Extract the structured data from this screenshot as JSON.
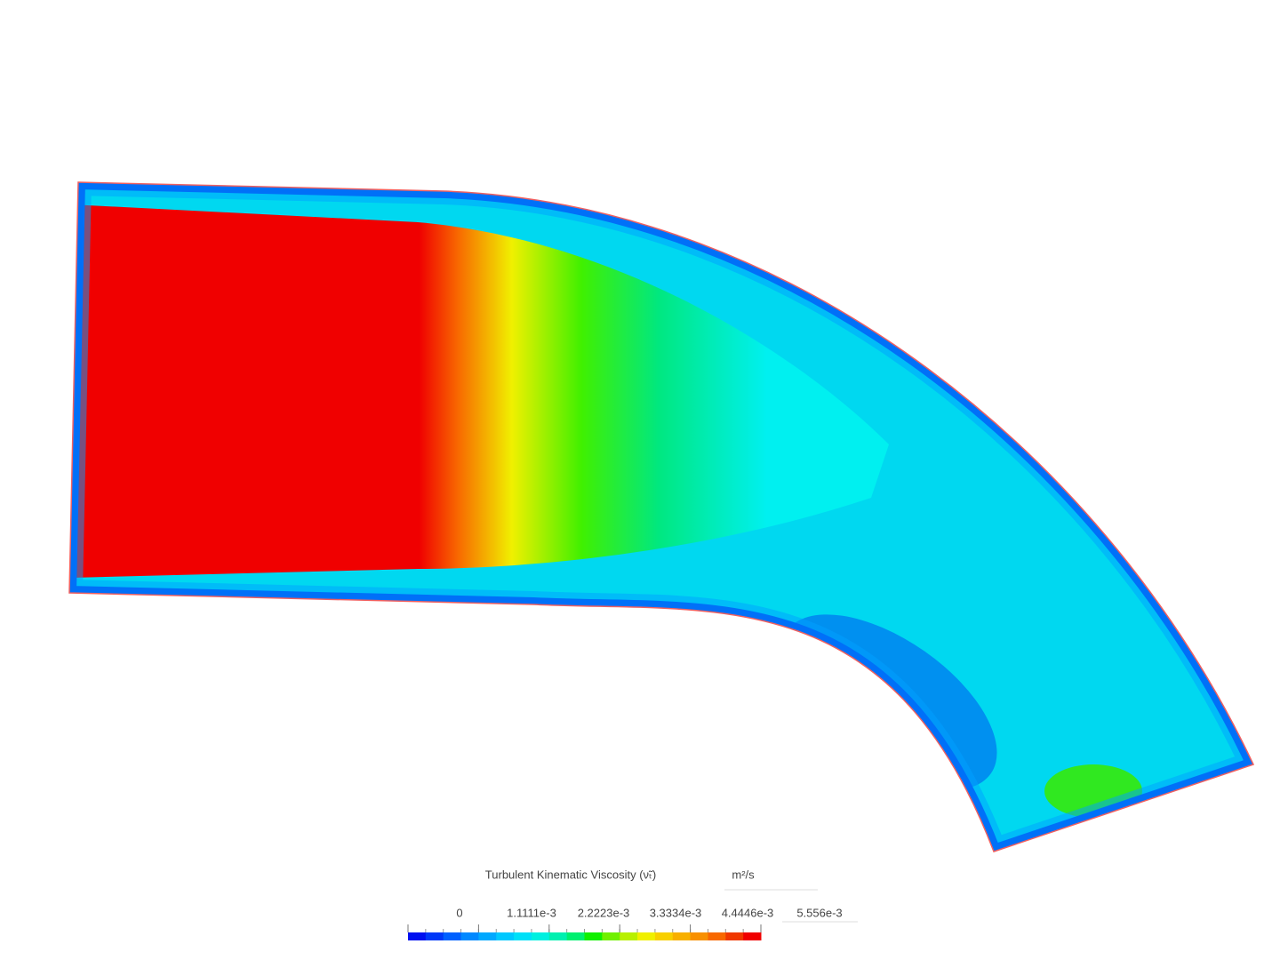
{
  "legend": {
    "title": "Turbulent Kinematic Viscosity (ν̃ₜ)",
    "unit": "m²/s",
    "ticks": [
      0,
      {
        "value": 0.0011111,
        "label": "1.1111e-3"
      },
      {
        "value": 0.0022223,
        "label": "2.2223e-3"
      },
      {
        "value": 0.0033334,
        "label": "3.3334e-3"
      },
      {
        "value": 0.0044446,
        "label": "4.4446e-3"
      },
      {
        "value": 0.005556,
        "label": "5.556e-3"
      }
    ],
    "range": [
      0,
      0.005556
    ],
    "colors": [
      "#0010f0",
      "#0038f8",
      "#0060ff",
      "#0088ff",
      "#00a8ff",
      "#00c8ff",
      "#00e0f8",
      "#00f0e0",
      "#00f0b0",
      "#00f070",
      "#10f000",
      "#70f000",
      "#b8f000",
      "#f0f000",
      "#f8d000",
      "#f8b000",
      "#f89000",
      "#f86800",
      "#f03800",
      "#f00000"
    ]
  }
}
